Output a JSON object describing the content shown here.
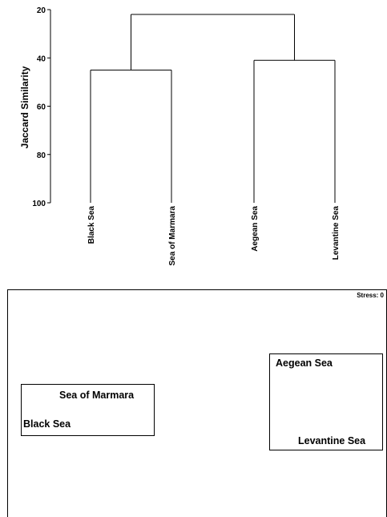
{
  "chart_data": [
    {
      "type": "dendrogram",
      "ylabel": "Jaccard Similarity",
      "ylim": [
        20,
        100
      ],
      "y_ticks": [
        "20",
        "40",
        "60",
        "80",
        "100"
      ],
      "leaves": [
        "Black Sea",
        "Sea of Marmara",
        "Aegean Sea",
        "Levantine Sea"
      ],
      "merges": [
        {
          "members": [
            "Black Sea",
            "Sea of Marmara"
          ],
          "similarity": 45
        },
        {
          "members": [
            "Aegean Sea",
            "Levantine Sea"
          ],
          "similarity": 41
        },
        {
          "members": [
            "Black Sea",
            "Sea of Marmara",
            "Aegean Sea",
            "Levantine Sea"
          ],
          "similarity": 22
        }
      ]
    },
    {
      "type": "scatter",
      "stress_label": "Stress: 0",
      "points": [
        {
          "label": "Sea of Marmara",
          "group": 1
        },
        {
          "label": "Black Sea",
          "group": 1
        },
        {
          "label": "Aegean Sea",
          "group": 2
        },
        {
          "label": "Levantine Sea",
          "group": 2
        }
      ]
    }
  ]
}
